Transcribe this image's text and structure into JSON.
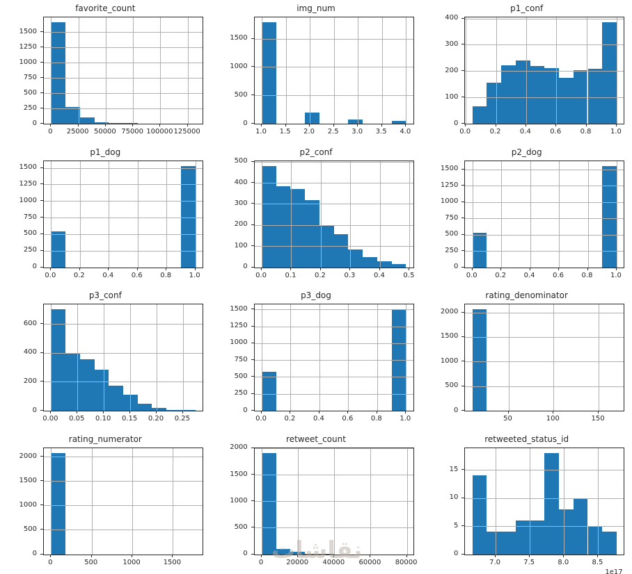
{
  "figure": {
    "background": "#ffffff",
    "bar_color": "#1f77b4",
    "grid_color": "#b0b0b0",
    "spine_color": "#262626",
    "text_color": "#262626",
    "grid_on": true,
    "layout": "4 rows x 3 columns of histograms"
  },
  "watermark": {
    "text": "نقاشات"
  },
  "chart_data": [
    {
      "type": "bar",
      "title": "favorite_count",
      "bin_start": 0,
      "bin_width": 13200,
      "values": [
        1660,
        275,
        105,
        25,
        12,
        12,
        0,
        0,
        0,
        0
      ],
      "xlim": [
        -6600,
        138600
      ],
      "ylim": [
        0,
        1743
      ],
      "xticks": {
        "values": [
          0,
          25000,
          50000,
          75000,
          100000,
          125000
        ],
        "labels": [
          "0",
          "25000",
          "50000",
          "75000",
          "100000",
          "125000"
        ]
      },
      "yticks": {
        "values": [
          0,
          250,
          500,
          750,
          1000,
          1250,
          1500
        ],
        "labels": [
          "0",
          "250",
          "500",
          "750",
          "1000",
          "1250",
          "1500"
        ]
      }
    },
    {
      "type": "bar",
      "title": "img_num",
      "bin_start": 1.0,
      "bin_width": 0.3,
      "values": [
        1785,
        0,
        0,
        200,
        0,
        0,
        70,
        0,
        0,
        45
      ],
      "xlim": [
        0.85,
        4.15
      ],
      "ylim": [
        0,
        1874
      ],
      "xticks": {
        "values": [
          1.0,
          1.5,
          2.0,
          2.5,
          3.0,
          3.5,
          4.0
        ],
        "labels": [
          "1.0",
          "1.5",
          "2.0",
          "2.5",
          "3.0",
          "3.5",
          "4.0"
        ]
      },
      "yticks": {
        "values": [
          0,
          500,
          1000,
          1500
        ],
        "labels": [
          "0",
          "500",
          "1000",
          "1500"
        ]
      }
    },
    {
      "type": "bar",
      "title": "p1_conf",
      "bin_start": 0.044,
      "bin_width": 0.0956,
      "values": [
        65,
        155,
        222,
        240,
        218,
        210,
        175,
        203,
        209,
        385
      ],
      "xlim": [
        -0.0038,
        1.0478
      ],
      "ylim": [
        0,
        404
      ],
      "xticks": {
        "values": [
          0.0,
          0.2,
          0.4,
          0.6,
          0.8,
          1.0
        ],
        "labels": [
          "0.0",
          "0.2",
          "0.4",
          "0.6",
          "0.8",
          "1.0"
        ]
      },
      "yticks": {
        "values": [
          0,
          100,
          200,
          300,
          400
        ],
        "labels": [
          "0",
          "100",
          "200",
          "300",
          "400"
        ]
      }
    },
    {
      "type": "bar",
      "title": "p1_dog",
      "bin_start": 0.0,
      "bin_width": 0.1,
      "values": [
        545,
        0,
        0,
        0,
        0,
        0,
        0,
        0,
        0,
        1530
      ],
      "xlim": [
        -0.05,
        1.05
      ],
      "ylim": [
        0,
        1607
      ],
      "xticks": {
        "values": [
          0.0,
          0.2,
          0.4,
          0.6,
          0.8,
          1.0
        ],
        "labels": [
          "0.0",
          "0.2",
          "0.4",
          "0.6",
          "0.8",
          "1.0"
        ]
      },
      "yticks": {
        "values": [
          0,
          250,
          500,
          750,
          1000,
          1250,
          1500
        ],
        "labels": [
          "0",
          "250",
          "500",
          "750",
          "1000",
          "1250",
          "1500"
        ]
      }
    },
    {
      "type": "bar",
      "title": "p2_conf",
      "bin_start": 0.0,
      "bin_width": 0.0488,
      "values": [
        480,
        385,
        372,
        317,
        198,
        155,
        85,
        47,
        27,
        14
      ],
      "xlim": [
        -0.0244,
        0.5124
      ],
      "ylim": [
        0,
        504
      ],
      "xticks": {
        "values": [
          0.0,
          0.1,
          0.2,
          0.3,
          0.4,
          0.5
        ],
        "labels": [
          "0.0",
          "0.1",
          "0.2",
          "0.3",
          "0.4",
          "0.5"
        ]
      },
      "yticks": {
        "values": [
          0,
          100,
          200,
          300,
          400,
          500
        ],
        "labels": [
          "0",
          "100",
          "200",
          "300",
          "400",
          "500"
        ]
      }
    },
    {
      "type": "bar",
      "title": "p2_dog",
      "bin_start": 0.0,
      "bin_width": 0.1,
      "values": [
        525,
        0,
        0,
        0,
        0,
        0,
        0,
        0,
        0,
        1555
      ],
      "xlim": [
        -0.05,
        1.05
      ],
      "ylim": [
        0,
        1633
      ],
      "xticks": {
        "values": [
          0.0,
          0.2,
          0.4,
          0.6,
          0.8,
          1.0
        ],
        "labels": [
          "0.0",
          "0.2",
          "0.4",
          "0.6",
          "0.8",
          "1.0"
        ]
      },
      "yticks": {
        "values": [
          0,
          250,
          500,
          750,
          1000,
          1250,
          1500
        ],
        "labels": [
          "0",
          "250",
          "500",
          "750",
          "1000",
          "1250",
          "1500"
        ]
      }
    },
    {
      "type": "bar",
      "title": "p3_conf",
      "bin_start": 0.0,
      "bin_width": 0.02734,
      "values": [
        700,
        400,
        355,
        285,
        175,
        110,
        50,
        18,
        4,
        7
      ],
      "xlim": [
        -0.0137,
        0.2871
      ],
      "ylim": [
        0,
        735
      ],
      "xticks": {
        "values": [
          0.0,
          0.05,
          0.1,
          0.15,
          0.2,
          0.25
        ],
        "labels": [
          "0.00",
          "0.05",
          "0.10",
          "0.15",
          "0.20",
          "0.25"
        ]
      },
      "yticks": {
        "values": [
          0,
          200,
          400,
          600
        ],
        "labels": [
          "0",
          "200",
          "400",
          "600"
        ]
      }
    },
    {
      "type": "bar",
      "title": "p3_dog",
      "bin_start": 0.0,
      "bin_width": 0.1,
      "values": [
        575,
        0,
        0,
        0,
        0,
        0,
        0,
        0,
        0,
        1500
      ],
      "xlim": [
        -0.05,
        1.05
      ],
      "ylim": [
        0,
        1575
      ],
      "xticks": {
        "values": [
          0.0,
          0.2,
          0.4,
          0.6,
          0.8,
          1.0
        ],
        "labels": [
          "0.0",
          "0.2",
          "0.4",
          "0.6",
          "0.8",
          "1.0"
        ]
      },
      "yticks": {
        "values": [
          0,
          250,
          500,
          750,
          1000,
          1250,
          1500
        ],
        "labels": [
          "0",
          "250",
          "500",
          "750",
          "1000",
          "1250",
          "1500"
        ]
      }
    },
    {
      "type": "bar",
      "title": "rating_denominator",
      "bin_start": 10,
      "bin_width": 16,
      "values": [
        2060,
        0,
        0,
        0,
        0,
        0,
        0,
        0,
        0,
        0
      ],
      "xlim": [
        2,
        178
      ],
      "ylim": [
        0,
        2163
      ],
      "xticks": {
        "values": [
          50,
          100,
          150
        ],
        "labels": [
          "50",
          "100",
          "150"
        ]
      },
      "yticks": {
        "values": [
          0,
          500,
          1000,
          1500,
          2000
        ],
        "labels": [
          "0",
          "500",
          "1000",
          "1500",
          "2000"
        ]
      }
    },
    {
      "type": "bar",
      "title": "rating_numerator",
      "bin_start": 0,
      "bin_width": 177.6,
      "values": [
        2075,
        0,
        0,
        0,
        0,
        0,
        0,
        0,
        0,
        0
      ],
      "xlim": [
        -88.8,
        1864.8
      ],
      "ylim": [
        0,
        2179
      ],
      "xticks": {
        "values": [
          0,
          500,
          1000,
          1500
        ],
        "labels": [
          "0",
          "500",
          "1000",
          "1500"
        ]
      },
      "yticks": {
        "values": [
          0,
          500,
          1000,
          1500,
          2000
        ],
        "labels": [
          "0",
          "500",
          "1000",
          "1500",
          "2000"
        ]
      }
    },
    {
      "type": "bar",
      "title": "retweet_count",
      "bin_start": 0,
      "bin_width": 7950,
      "values": [
        1910,
        105,
        40,
        12,
        12,
        0,
        0,
        0,
        0,
        0
      ],
      "xlim": [
        -3975,
        83475
      ],
      "ylim": [
        0,
        2006
      ],
      "xticks": {
        "values": [
          0,
          20000,
          40000,
          60000,
          80000
        ],
        "labels": [
          "0",
          "20000",
          "40000",
          "60000",
          "80000"
        ]
      },
      "yticks": {
        "values": [
          0,
          500,
          1000,
          1500,
          2000
        ],
        "labels": [
          "0",
          "500",
          "1000",
          "1500",
          "2000"
        ]
      }
    },
    {
      "type": "bar",
      "title": "retweeted_status_id",
      "bin_start": 6.66,
      "bin_width": 0.211,
      "values": [
        14,
        4,
        4,
        6,
        6,
        18,
        8,
        10,
        5,
        4
      ],
      "xlim": [
        6.5545,
        8.8755
      ],
      "ylim": [
        0,
        18.9
      ],
      "xticks": {
        "values": [
          7.0,
          7.5,
          8.0,
          8.5
        ],
        "labels": [
          "7.0",
          "7.5",
          "8.0",
          "8.5"
        ]
      },
      "yticks": {
        "values": [
          0,
          5,
          10,
          15
        ],
        "labels": [
          "0",
          "5",
          "10",
          "15"
        ]
      },
      "x_offset_label": "1e17"
    }
  ]
}
